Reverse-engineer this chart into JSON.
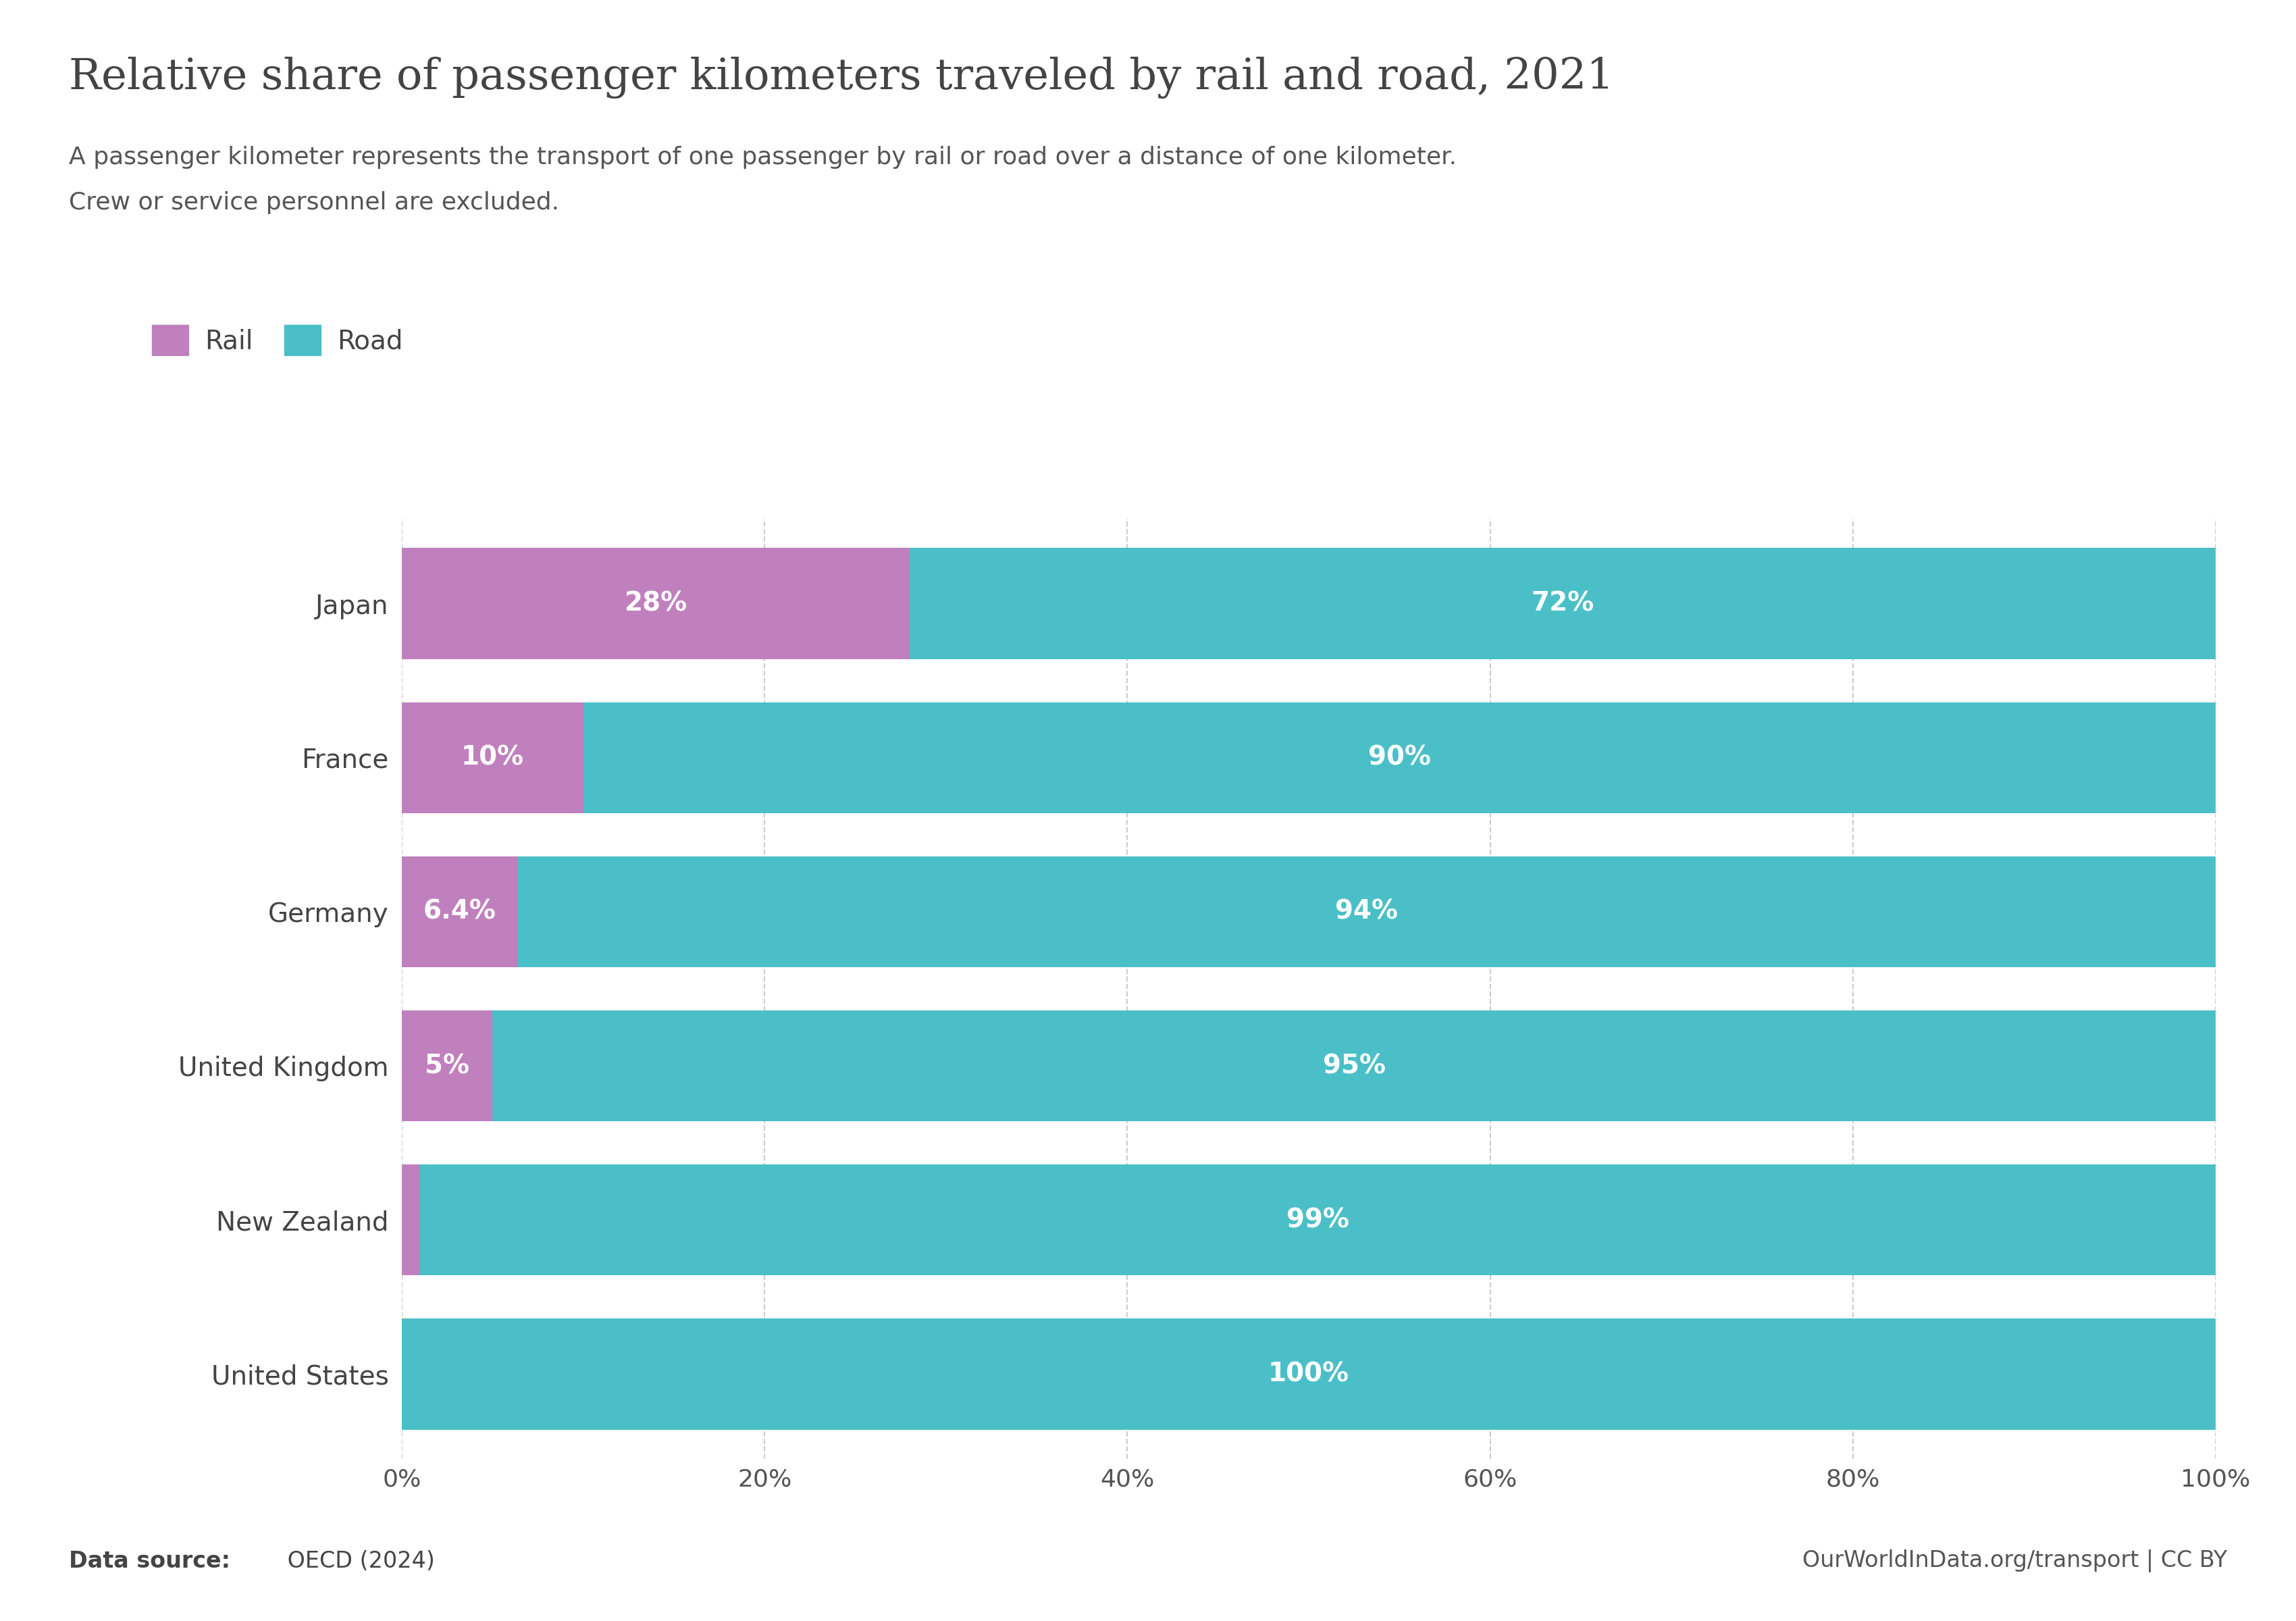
{
  "title": "Relative share of passenger kilometers traveled by rail and road, 2021",
  "subtitle_line1": "A passenger kilometer represents the transport of one passenger by rail or road over a distance of one kilometer.",
  "subtitle_line2": "Crew or service personnel are excluded.",
  "countries": [
    "Japan",
    "France",
    "Germany",
    "United Kingdom",
    "New Zealand",
    "United States"
  ],
  "rail_pct": [
    28,
    10,
    6.4,
    5,
    1,
    0
  ],
  "road_pct": [
    72,
    90,
    93.6,
    95,
    99,
    100
  ],
  "rail_labels": [
    "28%",
    "10%",
    "6.4%",
    "5%",
    "",
    ""
  ],
  "road_labels": [
    "72%",
    "90%",
    "94%",
    "95%",
    "99%",
    "100%"
  ],
  "rail_color": "#c080be",
  "road_color": "#4bbfc8",
  "background_color": "#ffffff",
  "bar_height": 0.72,
  "title_fontsize": 46,
  "subtitle_fontsize": 26,
  "label_fontsize": 28,
  "tick_fontsize": 26,
  "legend_fontsize": 28,
  "country_fontsize": 28,
  "footer_fontsize": 24,
  "footer_left_bold": "Data source:",
  "footer_left_normal": " OECD (2024)",
  "footer_right": "OurWorldInData.org/transport | CC BY",
  "logo_red": "#c0392b",
  "logo_navy": "#1a2a4a",
  "xlim": [
    0,
    100
  ]
}
